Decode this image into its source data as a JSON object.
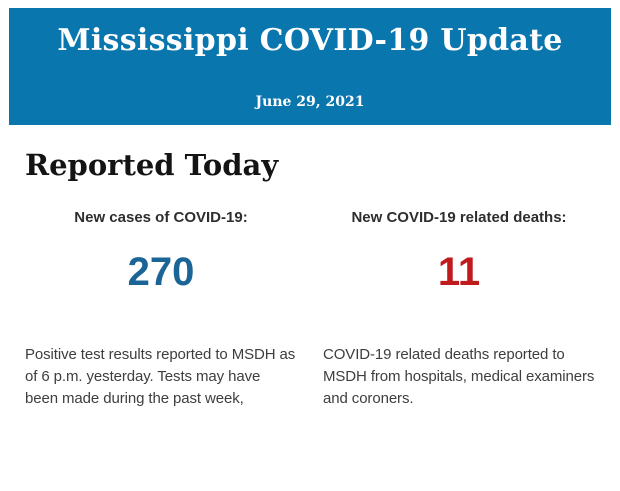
{
  "banner": {
    "title": "Mississippi COVID-19 Update",
    "date": "June 29, 2021",
    "background_color": "#0a76ae",
    "text_color": "#ffffff"
  },
  "section": {
    "heading": "Reported Today"
  },
  "stats": {
    "cases": {
      "label": "New cases of COVID-19:",
      "value": "270",
      "value_color": "#1b6496",
      "description": "Positive test results reported to MSDH as of 6 p.m. yesterday. Tests may have been made during the past week,"
    },
    "deaths": {
      "label": "New COVID-19 related deaths:",
      "value": "11",
      "value_color": "#c01a1c",
      "description": "COVID-19 related deaths reported to MSDH from hospitals, medical examiners and coroners."
    }
  }
}
